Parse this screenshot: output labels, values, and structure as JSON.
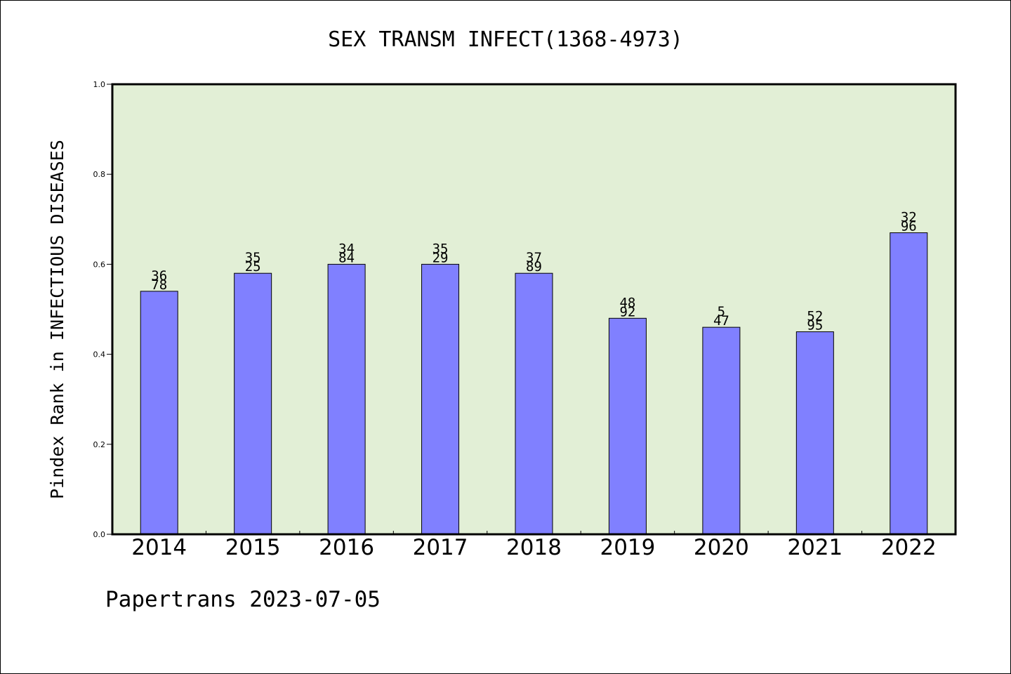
{
  "chart_data": {
    "type": "bar",
    "title": "SEX TRANSM INFECT(1368-4973)",
    "ylabel": "Pindex Rank in INFECTIOUS DISEASES",
    "xlabel": "",
    "footer": "Papertrans 2023-07-05",
    "categories": [
      "2014",
      "2015",
      "2016",
      "2017",
      "2018",
      "2019",
      "2020",
      "2021",
      "2022"
    ],
    "values": [
      0.54,
      0.58,
      0.6,
      0.6,
      0.58,
      0.48,
      0.46,
      0.45,
      0.67
    ],
    "bar_labels": [
      [
        "36",
        "78"
      ],
      [
        "35",
        "25"
      ],
      [
        "34",
        "84"
      ],
      [
        "35",
        "29"
      ],
      [
        "37",
        "89"
      ],
      [
        "48",
        "92"
      ],
      [
        "5",
        "47"
      ],
      [
        "52",
        "95"
      ],
      [
        "32",
        "96"
      ]
    ],
    "ylim": [
      0,
      1.0
    ],
    "yticks": [
      "0.0",
      "0.2",
      "0.4",
      "0.6",
      "0.8",
      "1.0"
    ],
    "colors": {
      "plot_background": "#e2efd6",
      "bar_fill": "#8080ff",
      "bar_stroke": "#000000"
    },
    "grid": false,
    "legend": "none"
  }
}
